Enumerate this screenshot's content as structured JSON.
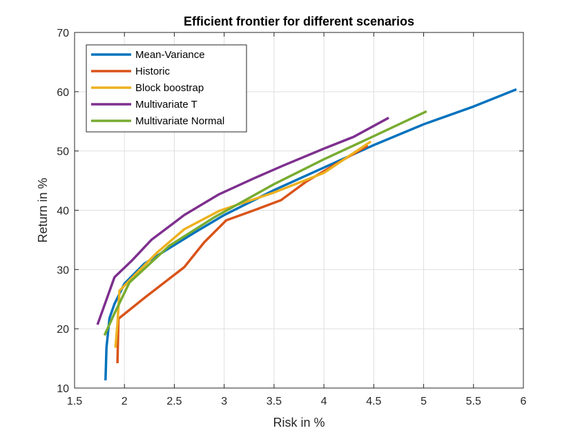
{
  "chart_data": {
    "type": "line",
    "title": "Efficient frontier for different scenarios",
    "xlabel": "Risk in %",
    "ylabel": "Return in %",
    "xlim": [
      1.5,
      6
    ],
    "ylim": [
      10,
      70
    ],
    "xticks": [
      1.5,
      2,
      2.5,
      3,
      3.5,
      4,
      4.5,
      5,
      5.5,
      6
    ],
    "yticks": [
      10,
      20,
      30,
      40,
      50,
      60,
      70
    ],
    "xtick_labels": [
      "1.5",
      "2",
      "2.5",
      "3",
      "3.5",
      "4",
      "4.5",
      "5",
      "5.5",
      "6"
    ],
    "ytick_labels": [
      "10",
      "20",
      "30",
      "40",
      "50",
      "60",
      "70"
    ],
    "grid": true,
    "legend_position": "top-left",
    "series": [
      {
        "name": "Mean-Variance",
        "color": "#0072BD",
        "points": [
          [
            1.81,
            11.3
          ],
          [
            1.82,
            16.8
          ],
          [
            1.85,
            21.8
          ],
          [
            1.9,
            24.2
          ],
          [
            2.0,
            27.6
          ],
          [
            2.2,
            31.0
          ],
          [
            2.43,
            33.4
          ],
          [
            2.7,
            36.2
          ],
          [
            3.0,
            39.2
          ],
          [
            3.5,
            43.4
          ],
          [
            4.0,
            47.2
          ],
          [
            4.5,
            51.0
          ],
          [
            5.0,
            54.5
          ],
          [
            5.5,
            57.5
          ],
          [
            5.93,
            60.4
          ]
        ]
      },
      {
        "name": "Historic",
        "color": "#D95319",
        "points": [
          [
            1.93,
            14.2
          ],
          [
            1.94,
            21.7
          ],
          [
            2.2,
            25.2
          ],
          [
            2.6,
            30.4
          ],
          [
            2.8,
            34.6
          ],
          [
            3.02,
            38.3
          ],
          [
            3.3,
            40.0
          ],
          [
            3.57,
            41.7
          ],
          [
            3.82,
            44.8
          ],
          [
            4.1,
            47.6
          ],
          [
            4.44,
            50.9
          ]
        ]
      },
      {
        "name": "Block boostrap",
        "color": "#EDB120",
        "points": [
          [
            1.91,
            16.8
          ],
          [
            1.93,
            20.8
          ],
          [
            1.95,
            26.4
          ],
          [
            2.1,
            29.0
          ],
          [
            2.33,
            32.9
          ],
          [
            2.6,
            36.8
          ],
          [
            2.95,
            39.9
          ],
          [
            3.5,
            43.0
          ],
          [
            4.0,
            46.3
          ],
          [
            4.47,
            51.6
          ]
        ]
      },
      {
        "name": "Multivariate T",
        "color": "#7E2F8E",
        "points": [
          [
            1.73,
            20.7
          ],
          [
            1.9,
            28.7
          ],
          [
            2.08,
            31.6
          ],
          [
            2.27,
            35.0
          ],
          [
            2.6,
            39.2
          ],
          [
            2.95,
            42.7
          ],
          [
            3.3,
            45.4
          ],
          [
            3.6,
            47.6
          ],
          [
            4.0,
            50.4
          ],
          [
            4.3,
            52.4
          ],
          [
            4.65,
            55.6
          ]
        ]
      },
      {
        "name": "Multivariate Normal",
        "color": "#77AC30",
        "points": [
          [
            1.8,
            18.9
          ],
          [
            1.9,
            22.6
          ],
          [
            2.05,
            27.8
          ],
          [
            2.45,
            34.0
          ],
          [
            2.9,
            38.8
          ],
          [
            3.5,
            44.4
          ],
          [
            4.0,
            48.6
          ],
          [
            4.5,
            52.5
          ],
          [
            5.03,
            56.7
          ]
        ]
      }
    ]
  }
}
